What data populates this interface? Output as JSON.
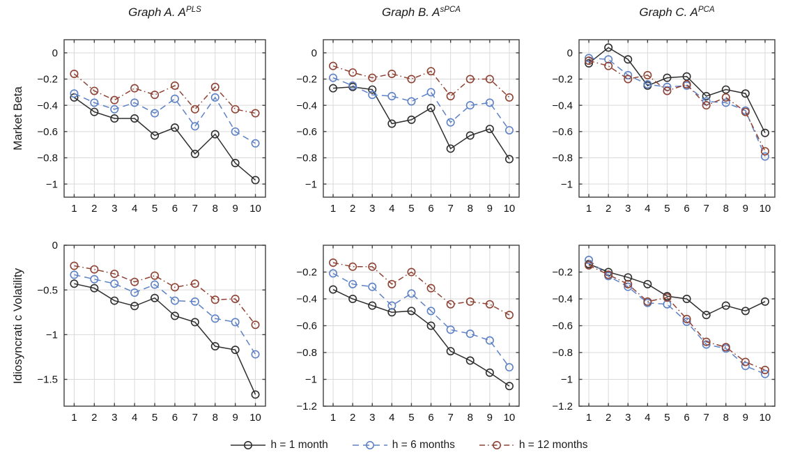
{
  "figure": {
    "row_labels": [
      "Market Beta",
      "Idiosyncrati c Volatility"
    ],
    "titles": [
      {
        "prefix": "Graph A. A",
        "sup": "PLS"
      },
      {
        "prefix": "Graph B. A",
        "sup": "sPCA"
      },
      {
        "prefix": "Graph C. A",
        "sup": "PCA"
      }
    ],
    "legend": [
      {
        "label": "h = 1 month",
        "color": "#2e2e2e",
        "dash": "solid"
      },
      {
        "label": "h = 6 months",
        "color": "#5d81c6",
        "dash": "dashed"
      },
      {
        "label": "h = 12 months",
        "color": "#8e4233",
        "dash": "dashdot"
      }
    ],
    "colors": {
      "grid": "#d9d9d9",
      "box": "#3f3f3f",
      "text": "#111111",
      "background": "#ffffff"
    }
  },
  "chart_data": [
    {
      "type": "line",
      "name": "graph-a-market-beta",
      "row": 0,
      "col": 0,
      "title": "Graph A. A^PLS",
      "ylabel": "Market Beta",
      "x": [
        1,
        2,
        3,
        4,
        5,
        6,
        7,
        8,
        9,
        10
      ],
      "xlim": [
        0.5,
        10.5
      ],
      "ylim": [
        0.1,
        -1.1
      ],
      "xtick_labels": [
        "1",
        "2",
        "3",
        "4",
        "5",
        "6",
        "7",
        "8",
        "9",
        "10"
      ],
      "yticks": [
        0,
        -0.2,
        -0.4,
        -0.6,
        -0.8,
        -1
      ],
      "ytick_labels": [
        "0",
        "−0.2",
        "−0.4",
        "−0.6",
        "−0.8",
        "−1"
      ],
      "grid": true,
      "series": [
        {
          "name": "h = 1 month",
          "values": [
            -0.34,
            -0.45,
            -0.5,
            -0.5,
            -0.63,
            -0.57,
            -0.77,
            -0.62,
            -0.84,
            -0.97
          ]
        },
        {
          "name": "h = 6 months",
          "values": [
            -0.31,
            -0.38,
            -0.43,
            -0.38,
            -0.46,
            -0.35,
            -0.56,
            -0.34,
            -0.6,
            -0.69
          ]
        },
        {
          "name": "h = 12 months",
          "values": [
            -0.16,
            -0.29,
            -0.36,
            -0.27,
            -0.32,
            -0.25,
            -0.43,
            -0.26,
            -0.43,
            -0.46
          ]
        }
      ]
    },
    {
      "type": "line",
      "name": "graph-b-market-beta",
      "row": 0,
      "col": 1,
      "title": "Graph B. A^sPCA",
      "ylabel": "Market Beta",
      "x": [
        1,
        2,
        3,
        4,
        5,
        6,
        7,
        8,
        9,
        10
      ],
      "xlim": [
        0.5,
        10.5
      ],
      "ylim": [
        0.1,
        -1.1
      ],
      "xtick_labels": [
        "1",
        "2",
        "3",
        "4",
        "5",
        "6",
        "7",
        "8",
        "9",
        "10"
      ],
      "yticks": [
        0,
        -0.2,
        -0.4,
        -0.6,
        -0.8,
        -1
      ],
      "ytick_labels": [
        "0",
        "−0.2",
        "−0.4",
        "−0.6",
        "−0.8",
        "−1"
      ],
      "grid": true,
      "series": [
        {
          "name": "h = 1 month",
          "values": [
            -0.27,
            -0.26,
            -0.28,
            -0.54,
            -0.51,
            -0.42,
            -0.73,
            -0.63,
            -0.58,
            -0.81
          ]
        },
        {
          "name": "h = 6 months",
          "values": [
            -0.19,
            -0.25,
            -0.32,
            -0.33,
            -0.37,
            -0.3,
            -0.53,
            -0.4,
            -0.38,
            -0.59
          ]
        },
        {
          "name": "h = 12 months",
          "values": [
            -0.1,
            -0.15,
            -0.19,
            -0.16,
            -0.2,
            -0.14,
            -0.33,
            -0.2,
            -0.2,
            -0.34
          ]
        }
      ]
    },
    {
      "type": "line",
      "name": "graph-c-market-beta",
      "row": 0,
      "col": 2,
      "title": "Graph C. A^PCA",
      "ylabel": "Market Beta",
      "x": [
        1,
        2,
        3,
        4,
        5,
        6,
        7,
        8,
        9,
        10
      ],
      "xlim": [
        0.5,
        10.5
      ],
      "ylim": [
        0.1,
        -1.1
      ],
      "xtick_labels": [
        "1",
        "2",
        "3",
        "4",
        "5",
        "6",
        "7",
        "8",
        "9",
        "10"
      ],
      "yticks": [
        0,
        -0.2,
        -0.4,
        -0.6,
        -0.8,
        -1
      ],
      "ytick_labels": [
        "0",
        "−0.2",
        "−0.4",
        "−0.6",
        "−0.8",
        "−1"
      ],
      "grid": true,
      "series": [
        {
          "name": "h = 1 month",
          "values": [
            -0.08,
            0.04,
            -0.05,
            -0.25,
            -0.19,
            -0.18,
            -0.33,
            -0.28,
            -0.31,
            -0.61
          ]
        },
        {
          "name": "h = 6 months",
          "values": [
            -0.04,
            -0.05,
            -0.17,
            -0.24,
            -0.26,
            -0.25,
            -0.37,
            -0.38,
            -0.44,
            -0.79
          ]
        },
        {
          "name": "h = 12 months",
          "values": [
            -0.06,
            -0.1,
            -0.2,
            -0.17,
            -0.29,
            -0.24,
            -0.4,
            -0.34,
            -0.45,
            -0.75
          ]
        }
      ]
    },
    {
      "type": "line",
      "name": "graph-a-idiosyncratic-volatility",
      "row": 1,
      "col": 0,
      "title": "Graph A. A^PLS",
      "ylabel": "Idiosyncrati c Volatility",
      "x": [
        1,
        2,
        3,
        4,
        5,
        6,
        7,
        8,
        9,
        10
      ],
      "xlim": [
        0.5,
        10.5
      ],
      "ylim": [
        0,
        -1.8
      ],
      "xtick_labels": [
        "1",
        "2",
        "3",
        "4",
        "5",
        "6",
        "7",
        "8",
        "9",
        "10"
      ],
      "yticks": [
        0,
        -0.5,
        -1,
        -1.5
      ],
      "ytick_labels": [
        "0",
        "−0.5",
        "−1",
        "−1.5"
      ],
      "grid": true,
      "series": [
        {
          "name": "h = 1 month",
          "values": [
            -0.43,
            -0.48,
            -0.62,
            -0.68,
            -0.59,
            -0.79,
            -0.86,
            -1.13,
            -1.17,
            -1.67
          ]
        },
        {
          "name": "h = 6 months",
          "values": [
            -0.33,
            -0.38,
            -0.43,
            -0.53,
            -0.44,
            -0.62,
            -0.63,
            -0.82,
            -0.86,
            -1.22
          ]
        },
        {
          "name": "h = 12 months",
          "values": [
            -0.23,
            -0.27,
            -0.32,
            -0.41,
            -0.34,
            -0.47,
            -0.43,
            -0.61,
            -0.6,
            -0.89
          ]
        }
      ]
    },
    {
      "type": "line",
      "name": "graph-b-idiosyncratic-volatility",
      "row": 1,
      "col": 1,
      "title": "Graph B. A^sPCA",
      "ylabel": "Idiosyncrati c Volatility",
      "x": [
        1,
        2,
        3,
        4,
        5,
        6,
        7,
        8,
        9,
        10
      ],
      "xlim": [
        0.5,
        10.5
      ],
      "ylim": [
        0,
        -1.2
      ],
      "xtick_labels": [
        "1",
        "2",
        "3",
        "4",
        "5",
        "6",
        "7",
        "8",
        "9",
        "10"
      ],
      "yticks": [
        -0.2,
        -0.4,
        -0.6,
        -0.8,
        -1,
        -1.2
      ],
      "ytick_labels": [
        "−0.2",
        "−0.4",
        "−0.6",
        "−0.8",
        "−1",
        "−1.2"
      ],
      "grid": true,
      "series": [
        {
          "name": "h = 1 month",
          "values": [
            -0.33,
            -0.4,
            -0.45,
            -0.5,
            -0.49,
            -0.6,
            -0.79,
            -0.86,
            -0.95,
            -1.05
          ]
        },
        {
          "name": "h = 6 months",
          "values": [
            -0.21,
            -0.29,
            -0.31,
            -0.45,
            -0.36,
            -0.49,
            -0.63,
            -0.66,
            -0.71,
            -0.91
          ]
        },
        {
          "name": "h = 12 months",
          "values": [
            -0.13,
            -0.16,
            -0.16,
            -0.29,
            -0.2,
            -0.32,
            -0.44,
            -0.42,
            -0.44,
            -0.52
          ]
        }
      ]
    },
    {
      "type": "line",
      "name": "graph-c-idiosyncratic-volatility",
      "row": 1,
      "col": 2,
      "title": "Graph C. A^PCA",
      "ylabel": "Idiosyncrati c Volatility",
      "x": [
        1,
        2,
        3,
        4,
        5,
        6,
        7,
        8,
        9,
        10
      ],
      "xlim": [
        0.5,
        10.5
      ],
      "ylim": [
        0,
        -1.2
      ],
      "xtick_labels": [
        "1",
        "2",
        "3",
        "4",
        "5",
        "6",
        "7",
        "8",
        "9",
        "10"
      ],
      "yticks": [
        -0.2,
        -0.4,
        -0.6,
        -0.8,
        -1,
        -1.2
      ],
      "ytick_labels": [
        "−0.2",
        "−0.4",
        "−0.6",
        "−0.8",
        "−1",
        "−1.2"
      ],
      "grid": true,
      "series": [
        {
          "name": "h = 1 month",
          "values": [
            -0.14,
            -0.2,
            -0.24,
            -0.29,
            -0.38,
            -0.4,
            -0.52,
            -0.45,
            -0.49,
            -0.42
          ]
        },
        {
          "name": "h = 6 months",
          "values": [
            -0.11,
            -0.23,
            -0.31,
            -0.43,
            -0.44,
            -0.57,
            -0.74,
            -0.77,
            -0.9,
            -0.96
          ]
        },
        {
          "name": "h = 12 months",
          "values": [
            -0.15,
            -0.22,
            -0.29,
            -0.42,
            -0.39,
            -0.55,
            -0.72,
            -0.76,
            -0.87,
            -0.93
          ]
        }
      ]
    }
  ]
}
